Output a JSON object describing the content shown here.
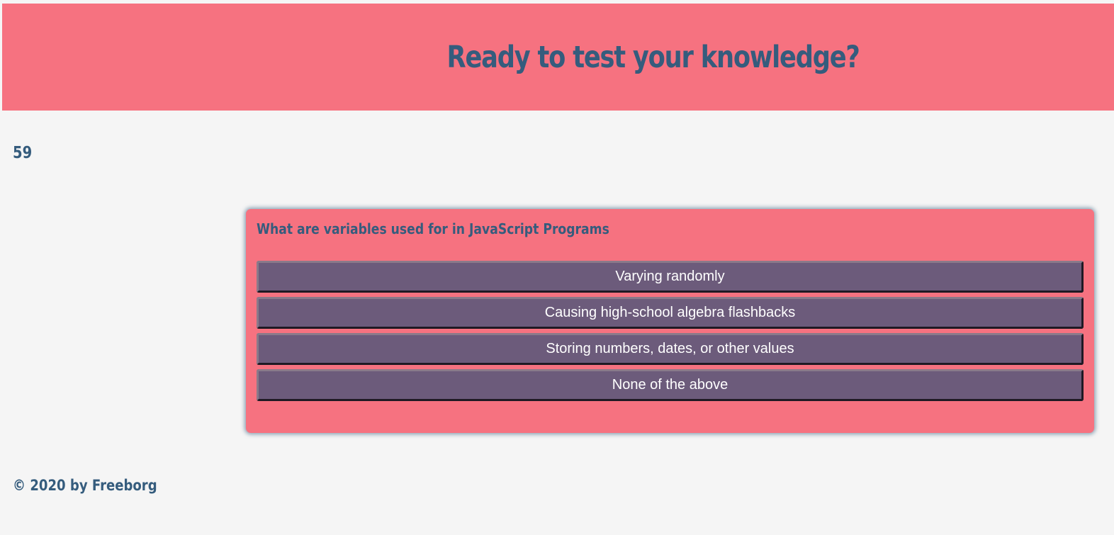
{
  "header": {
    "title": "Ready to test your knowledge?"
  },
  "timer": {
    "value": "59"
  },
  "quiz": {
    "question": "What are variables used for in JavaScript Programs",
    "answers": [
      "Varying randomly",
      "Causing high-school algebra flashbacks",
      "Storing numbers, dates, or other values",
      "None of the above"
    ]
  },
  "footer": {
    "copyright": "© 2020 by Freeborg"
  },
  "colors": {
    "accent": "#f67280",
    "text": "#355c7d",
    "button": "#6c5b7b",
    "background": "#f5f5f5"
  }
}
